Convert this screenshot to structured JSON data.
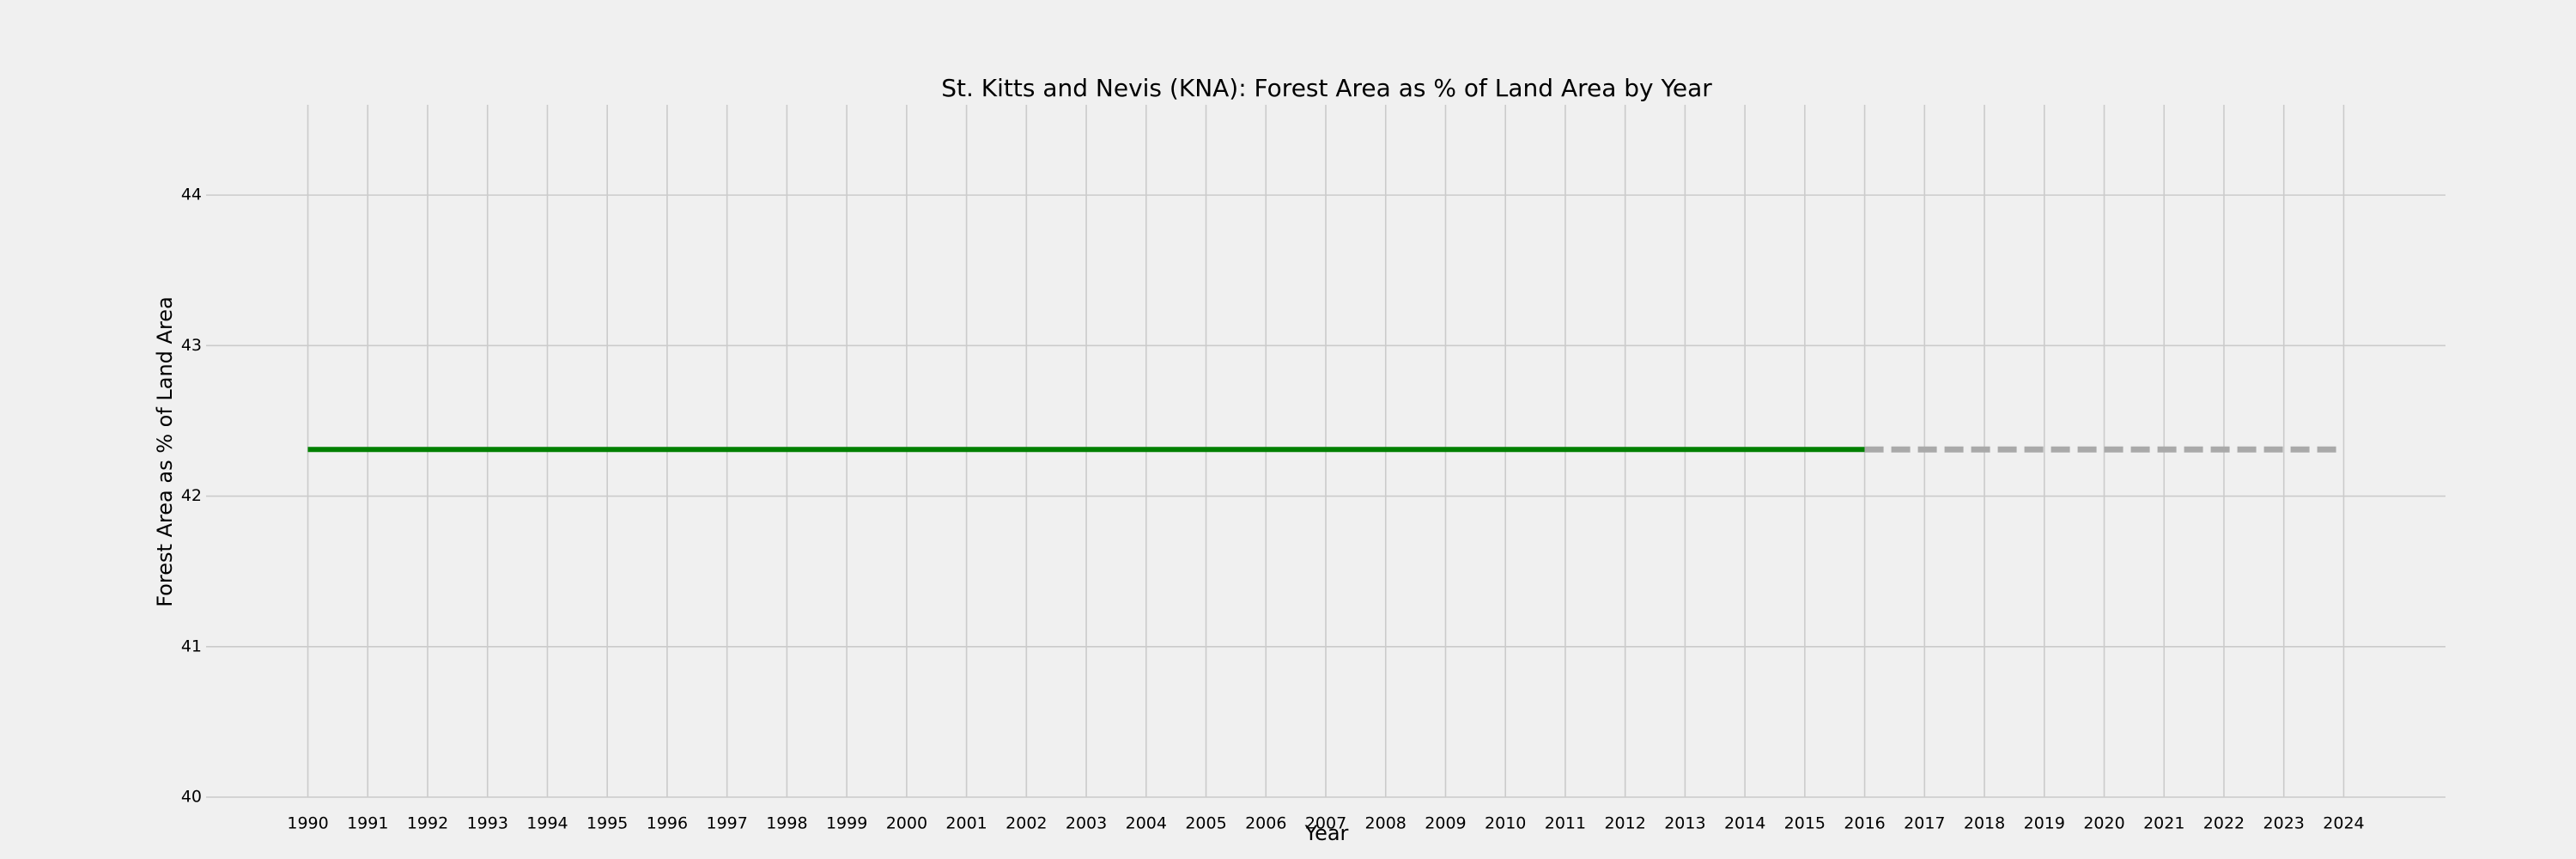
{
  "chart_data": {
    "type": "line",
    "title": "St. Kitts and Nevis (KNA): Forest Area as % of Land Area by Year",
    "xlabel": "Year",
    "ylabel": "Forest Area as % of Land Area",
    "xlim": [
      1988.3,
      2025.7
    ],
    "ylim": [
      40,
      44.6
    ],
    "x_ticks": [
      1990,
      1991,
      1992,
      1993,
      1994,
      1995,
      1996,
      1997,
      1998,
      1999,
      2000,
      2001,
      2002,
      2003,
      2004,
      2005,
      2006,
      2007,
      2008,
      2009,
      2010,
      2011,
      2012,
      2013,
      2014,
      2015,
      2016,
      2017,
      2018,
      2019,
      2020,
      2021,
      2022,
      2023,
      2024
    ],
    "y_ticks": [
      40,
      41,
      42,
      43,
      44
    ],
    "grid": true,
    "series": [
      {
        "style": "solid",
        "color": "#008000",
        "x": [
          1990,
          1991,
          1992,
          1993,
          1994,
          1995,
          1996,
          1997,
          1998,
          1999,
          2000,
          2001,
          2002,
          2003,
          2004,
          2005,
          2006,
          2007,
          2008,
          2009,
          2010,
          2011,
          2012,
          2013,
          2014,
          2015,
          2016
        ],
        "y": [
          42.31,
          42.31,
          42.31,
          42.31,
          42.31,
          42.31,
          42.31,
          42.31,
          42.31,
          42.31,
          42.31,
          42.31,
          42.31,
          42.31,
          42.31,
          42.31,
          42.31,
          42.31,
          42.31,
          42.31,
          42.31,
          42.31,
          42.31,
          42.31,
          42.31,
          42.31,
          42.31
        ]
      },
      {
        "style": "dashed",
        "color": "#a9a9a9",
        "x": [
          2016,
          2017,
          2018,
          2019,
          2020,
          2021,
          2022,
          2023,
          2024
        ],
        "y": [
          42.31,
          42.31,
          42.31,
          42.31,
          42.31,
          42.31,
          42.31,
          42.31,
          42.31
        ]
      }
    ]
  }
}
